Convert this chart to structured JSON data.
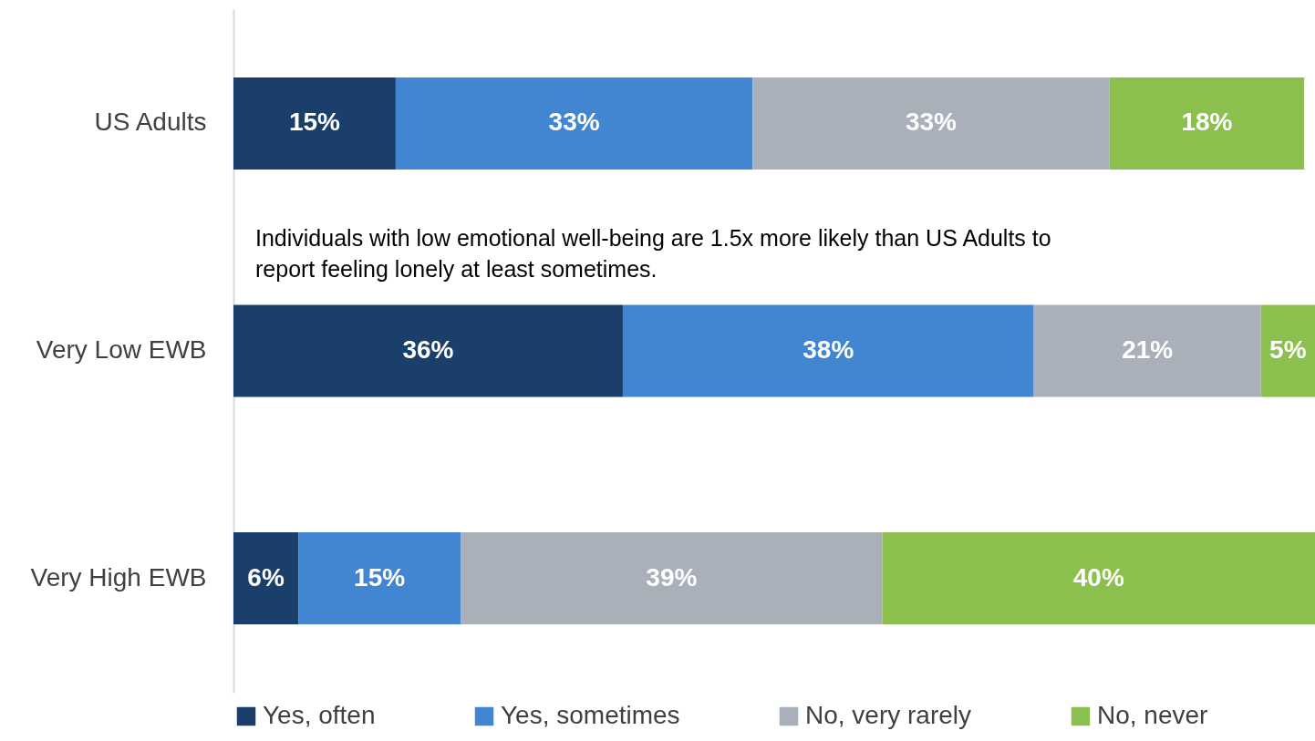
{
  "chart_data": {
    "type": "bar",
    "orientation": "horizontal",
    "stacked": true,
    "tick_labels": "y",
    "legend": "bottom",
    "categories": [
      "US Adults",
      "Very Low EWB",
      "Very High EWB"
    ],
    "series": [
      {
        "name": "Yes, often",
        "color": "#1a3f6b",
        "values": [
          15,
          36,
          6
        ],
        "value_labels": [
          "15%",
          "36%",
          "6%"
        ]
      },
      {
        "name": "Yes, sometimes",
        "color": "#4285d1",
        "values": [
          33,
          38,
          15
        ],
        "value_labels": [
          "33%",
          "38%",
          "15%"
        ]
      },
      {
        "name": "No, very rarely",
        "color": "#a9b0ba",
        "values": [
          33,
          21,
          39
        ],
        "value_labels": [
          "33%",
          "21%",
          "39%"
        ]
      },
      {
        "name": "No, never",
        "color": "#8bc04f",
        "values": [
          18,
          5,
          40
        ],
        "value_labels": [
          "18%",
          "5%",
          "40%"
        ]
      }
    ],
    "annotations": [
      "Individuals with low emotional well-being are 1.5x more likely than US Adults to report feeling lonely at least sometimes."
    ]
  }
}
